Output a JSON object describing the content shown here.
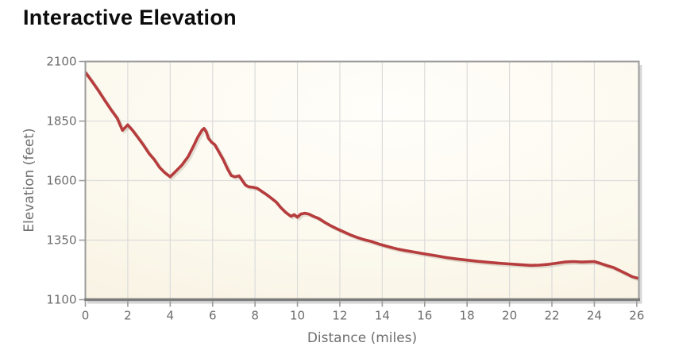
{
  "chart_data": {
    "type": "line",
    "title": "Interactive Elevation",
    "xlabel": "Distance (miles)",
    "ylabel": "Elevation (feet)",
    "xlim": [
      0,
      26.1
    ],
    "ylim": [
      1100,
      2100
    ],
    "x_ticks": [
      0,
      2,
      4,
      6,
      8,
      10,
      12,
      14,
      16,
      18,
      20,
      22,
      24,
      26
    ],
    "y_ticks": [
      1100,
      1350,
      1600,
      1850,
      2100
    ],
    "grid": true,
    "legend": "none",
    "colors": {
      "line": "#b63c3d",
      "plot_bg": "#faf5e6",
      "plot_bg_light": "#fffefa",
      "grid": "#dcdcdc",
      "frame": "#9c9c9c",
      "axis_bottom": "#7b7b7b",
      "frame_shadow": "#c9c9c9",
      "tick_text": "#6e6e6e",
      "title_text": "#0c0c0c"
    },
    "series": [
      {
        "name": "elevation-profile",
        "points": [
          [
            0,
            2055
          ],
          [
            0.3,
            2018
          ],
          [
            0.6,
            1980
          ],
          [
            0.9,
            1939
          ],
          [
            1.2,
            1899
          ],
          [
            1.5,
            1862
          ],
          [
            1.75,
            1811
          ],
          [
            2.0,
            1834
          ],
          [
            2.25,
            1808
          ],
          [
            2.5,
            1778
          ],
          [
            2.75,
            1748
          ],
          [
            3.0,
            1714
          ],
          [
            3.25,
            1688
          ],
          [
            3.5,
            1655
          ],
          [
            3.75,
            1633
          ],
          [
            4.0,
            1616
          ],
          [
            4.25,
            1638
          ],
          [
            4.55,
            1665
          ],
          [
            4.85,
            1701
          ],
          [
            5.1,
            1745
          ],
          [
            5.3,
            1782
          ],
          [
            5.5,
            1812
          ],
          [
            5.6,
            1819
          ],
          [
            5.7,
            1805
          ],
          [
            5.8,
            1778
          ],
          [
            5.95,
            1761
          ],
          [
            6.1,
            1751
          ],
          [
            6.3,
            1720
          ],
          [
            6.5,
            1688
          ],
          [
            6.7,
            1650
          ],
          [
            6.88,
            1621
          ],
          [
            7.05,
            1616
          ],
          [
            7.25,
            1620
          ],
          [
            7.4,
            1600
          ],
          [
            7.55,
            1581
          ],
          [
            7.7,
            1574
          ],
          [
            7.9,
            1572
          ],
          [
            8.1,
            1568
          ],
          [
            8.3,
            1556
          ],
          [
            8.55,
            1541
          ],
          [
            8.8,
            1524
          ],
          [
            9.0,
            1510
          ],
          [
            9.2,
            1488
          ],
          [
            9.45,
            1466
          ],
          [
            9.7,
            1450
          ],
          [
            9.85,
            1457
          ],
          [
            10.0,
            1446
          ],
          [
            10.15,
            1459
          ],
          [
            10.35,
            1463
          ],
          [
            10.55,
            1459
          ],
          [
            10.75,
            1450
          ],
          [
            11.0,
            1441
          ],
          [
            11.3,
            1424
          ],
          [
            11.6,
            1409
          ],
          [
            11.9,
            1396
          ],
          [
            12.2,
            1384
          ],
          [
            12.5,
            1372
          ],
          [
            12.8,
            1362
          ],
          [
            13.1,
            1353
          ],
          [
            13.5,
            1344
          ],
          [
            13.9,
            1332
          ],
          [
            14.3,
            1322
          ],
          [
            14.7,
            1313
          ],
          [
            15.1,
            1306
          ],
          [
            15.5,
            1300
          ],
          [
            16.0,
            1292
          ],
          [
            16.5,
            1285
          ],
          [
            17.0,
            1277
          ],
          [
            17.5,
            1271
          ],
          [
            18.0,
            1266
          ],
          [
            18.5,
            1261
          ],
          [
            19.0,
            1257
          ],
          [
            19.5,
            1253
          ],
          [
            20.0,
            1250
          ],
          [
            20.5,
            1247
          ],
          [
            21.0,
            1244
          ],
          [
            21.4,
            1245
          ],
          [
            21.8,
            1248
          ],
          [
            22.2,
            1253
          ],
          [
            22.6,
            1258
          ],
          [
            23.0,
            1260
          ],
          [
            23.4,
            1258
          ],
          [
            23.7,
            1259
          ],
          [
            24.0,
            1260
          ],
          [
            24.3,
            1252
          ],
          [
            24.6,
            1243
          ],
          [
            24.9,
            1235
          ],
          [
            25.2,
            1222
          ],
          [
            25.5,
            1209
          ],
          [
            25.8,
            1196
          ],
          [
            26.0,
            1191
          ],
          [
            26.1,
            1190
          ]
        ]
      }
    ]
  }
}
